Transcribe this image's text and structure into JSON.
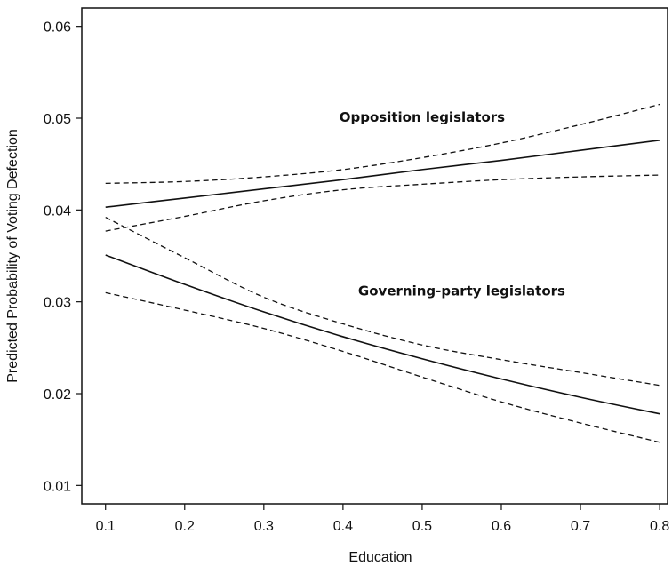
{
  "chart_data": {
    "type": "line",
    "title": "",
    "xlabel": "Education",
    "ylabel": "Predicted Probability of Voting Defection",
    "xlim": [
      0.07,
      0.81
    ],
    "ylim": [
      0.008,
      0.062
    ],
    "x_ticks": [
      0.1,
      0.2,
      0.3,
      0.4,
      0.5,
      0.6,
      0.7,
      0.8
    ],
    "x_tick_labels": [
      "0.1",
      "0.2",
      "0.3",
      "0.4",
      "0.5",
      "0.6",
      "0.7",
      "0.8"
    ],
    "y_ticks": [
      0.01,
      0.02,
      0.03,
      0.04,
      0.05,
      0.06
    ],
    "y_tick_labels": [
      "0.01",
      "0.02",
      "0.03",
      "0.04",
      "0.05",
      "0.06"
    ],
    "grid": false,
    "x": [
      0.1,
      0.2,
      0.3,
      0.4,
      0.5,
      0.6,
      0.7,
      0.8
    ],
    "series": [
      {
        "name": "Opposition legislators",
        "style": "solid",
        "color": "#111111",
        "values": [
          0.0403,
          0.0413,
          0.0423,
          0.0433,
          0.0444,
          0.0454,
          0.0465,
          0.0476
        ]
      },
      {
        "name": "Opposition legislators upper bound",
        "style": "dashed",
        "color": "#111111",
        "values": [
          0.0429,
          0.0431,
          0.0436,
          0.0444,
          0.0457,
          0.0473,
          0.0493,
          0.0515
        ]
      },
      {
        "name": "Opposition legislators lower bound",
        "style": "dashed",
        "color": "#111111",
        "values": [
          0.0377,
          0.0393,
          0.041,
          0.0422,
          0.0428,
          0.0433,
          0.0436,
          0.0438
        ]
      },
      {
        "name": "Governing-party legislators",
        "style": "solid",
        "color": "#111111",
        "values": [
          0.0351,
          0.0319,
          0.0289,
          0.0262,
          0.0238,
          0.0216,
          0.0196,
          0.0178
        ]
      },
      {
        "name": "Governing-party legislators upper bound",
        "style": "dashed",
        "color": "#111111",
        "values": [
          0.0392,
          0.0348,
          0.0305,
          0.0276,
          0.0253,
          0.0237,
          0.0223,
          0.0209
        ]
      },
      {
        "name": "Governing-party legislators lower bound",
        "style": "dashed",
        "color": "#111111",
        "values": [
          0.031,
          0.0291,
          0.0271,
          0.0246,
          0.0218,
          0.0191,
          0.0168,
          0.0147
        ]
      }
    ],
    "annotations": [
      {
        "text": "Opposition legislators",
        "x": 0.5,
        "y": 0.0496
      },
      {
        "text": "Governing-party legislators",
        "x": 0.55,
        "y": 0.0307
      }
    ]
  }
}
